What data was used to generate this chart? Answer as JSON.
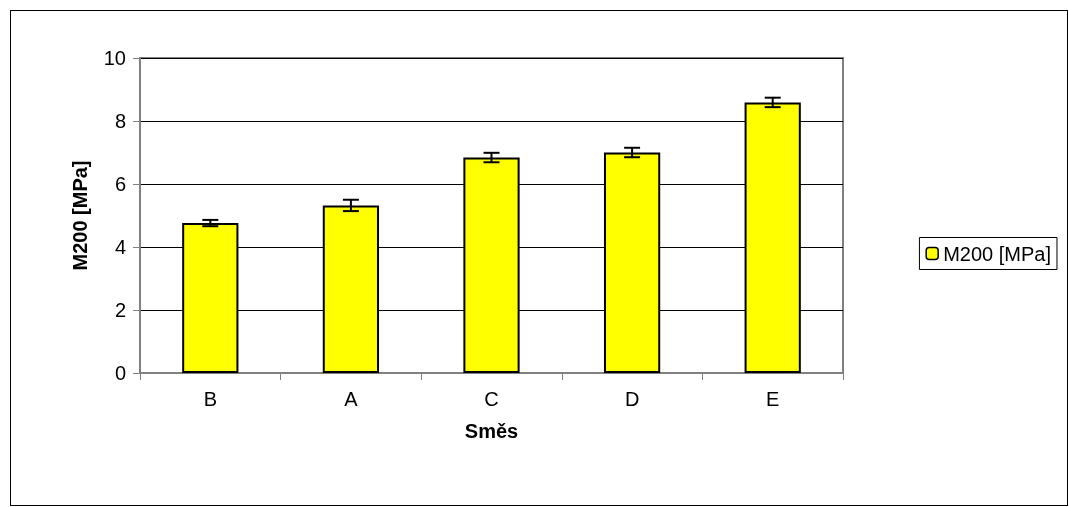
{
  "chart_data": {
    "type": "bar",
    "xlabel": "Směs",
    "ylabel": "M200 [MPa]",
    "categories": [
      "B",
      "A",
      "C",
      "D",
      "E"
    ],
    "series": [
      {
        "name": "M200 [MPa]",
        "color": "#ffff00",
        "values": [
          4.76,
          5.32,
          6.84,
          7.0,
          8.59
        ],
        "errors": [
          0.1,
          0.18,
          0.15,
          0.15,
          0.15
        ]
      }
    ],
    "ylim": [
      0,
      10
    ],
    "yticks": [
      0,
      2,
      4,
      6,
      8,
      10
    ],
    "grid": "y",
    "legend": "right"
  }
}
